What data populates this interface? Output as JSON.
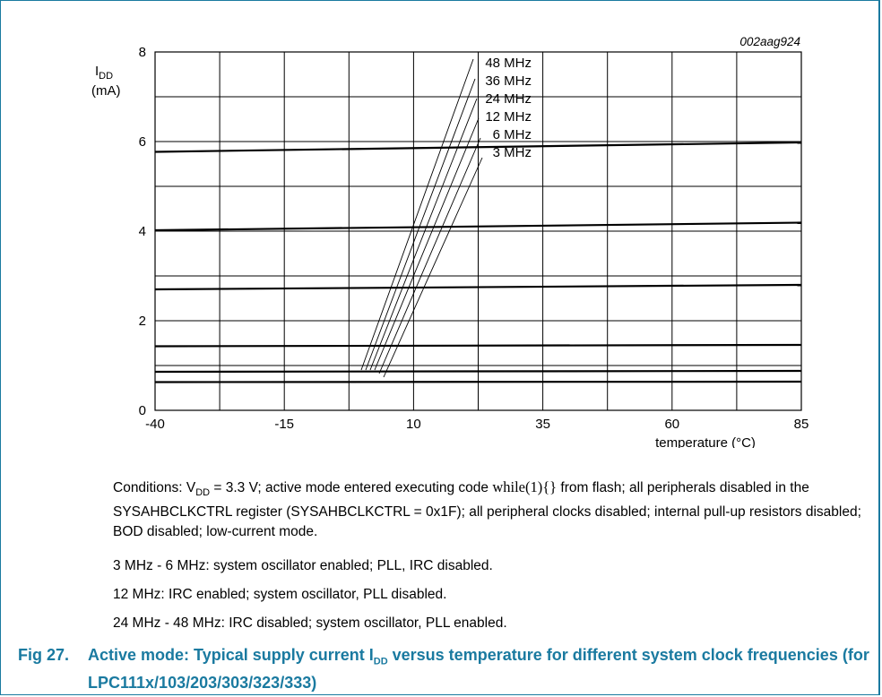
{
  "chart_data": {
    "type": "line",
    "figure_id": "002aag924",
    "ylabel_main": "I",
    "ylabel_sub": "DD",
    "ylabel_unit": "(mA)",
    "xlabel": "temperature (°C)",
    "xlim": [
      -40,
      85
    ],
    "ylim": [
      0,
      8
    ],
    "xticks": [
      -40,
      -15,
      10,
      35,
      60,
      85
    ],
    "yticks": [
      0,
      2,
      4,
      6,
      8
    ],
    "grid": true,
    "x": [
      -40,
      85
    ],
    "series": [
      {
        "name": "48 MHz",
        "values": [
          5.77,
          5.98
        ]
      },
      {
        "name": "36 MHz",
        "values": [
          4.02,
          4.19
        ]
      },
      {
        "name": "24 MHz",
        "values": [
          2.7,
          2.8
        ]
      },
      {
        "name": "12 MHz",
        "values": [
          1.43,
          1.46
        ]
      },
      {
        "name": "6 MHz",
        "values": [
          0.86,
          0.88
        ]
      },
      {
        "name": "3 MHz",
        "values": [
          0.63,
          0.64
        ]
      }
    ]
  },
  "conditions": {
    "p1_prefix": "Conditions: V",
    "p1_sub": "DD",
    "p1_mid": " = 3.3 V; active mode entered executing code ",
    "p1_code": "while(1){}",
    "p1_suffix": " from flash; all peripherals disabled in the SYSAHBCLKCTRL register (SYSAHBCLKCTRL = 0x1F); all peripheral clocks disabled; internal pull-up resistors disabled; BOD disabled; low-current mode.",
    "p2": "3 MHz - 6 MHz: system oscillator enabled; PLL, IRC disabled.",
    "p3": "12 MHz: IRC enabled; system oscillator, PLL disabled.",
    "p4": "24 MHz - 48 MHz: IRC disabled; system oscillator, PLL enabled."
  },
  "caption": {
    "number": "Fig 27.",
    "text_a": "Active mode: Typical supply current I",
    "text_sub": "DD",
    "text_b": " versus temperature for different system clock frequencies (for LPC111x/103/203/303/323/333)"
  }
}
